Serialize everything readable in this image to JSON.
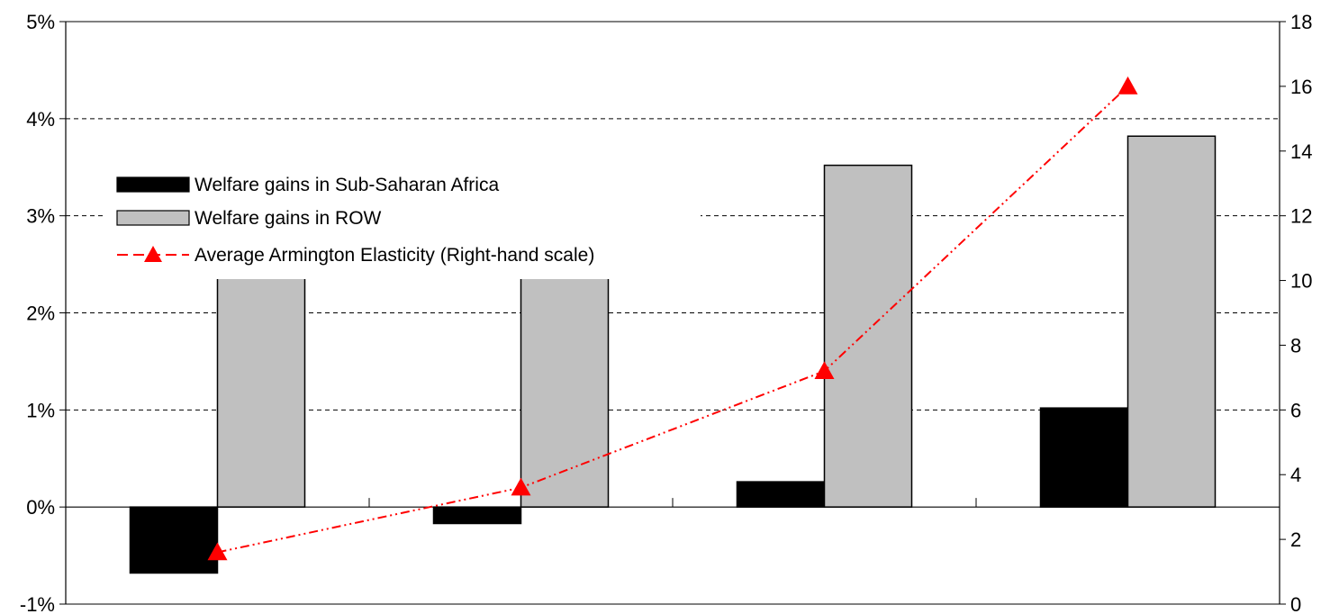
{
  "chart_data": {
    "type": "bar",
    "categories": [
      "",
      "",
      "",
      ""
    ],
    "series": [
      {
        "name": "Welfare gains in Sub-Saharan Africa",
        "type": "bar",
        "axis": "left",
        "color": "#000000",
        "values": [
          -0.68,
          -0.17,
          0.26,
          1.02
        ]
      },
      {
        "name": "Welfare gains in ROW",
        "type": "bar",
        "axis": "left",
        "color": "#c0c0c0",
        "values": [
          2.45,
          2.45,
          3.52,
          3.82
        ]
      },
      {
        "name": "Average Armington Elasticity (Right-hand scale)",
        "type": "line",
        "axis": "right",
        "color": "#ff0000",
        "values": [
          1.6,
          3.6,
          7.2,
          16.0
        ]
      }
    ],
    "y_left": {
      "min": -1,
      "max": 5,
      "ticks": [
        "-1%",
        "0%",
        "1%",
        "2%",
        "3%",
        "4%",
        "5%"
      ]
    },
    "y_right": {
      "min": 0,
      "max": 18,
      "ticks": [
        "0",
        "2",
        "4",
        "6",
        "8",
        "10",
        "12",
        "14",
        "16",
        "18"
      ]
    },
    "grid": true,
    "legend": {
      "position": "top-left",
      "items": [
        "Welfare gains in Sub-Saharan Africa",
        "Welfare gains in ROW",
        "Average Armington Elasticity (Right-hand scale)"
      ]
    }
  }
}
